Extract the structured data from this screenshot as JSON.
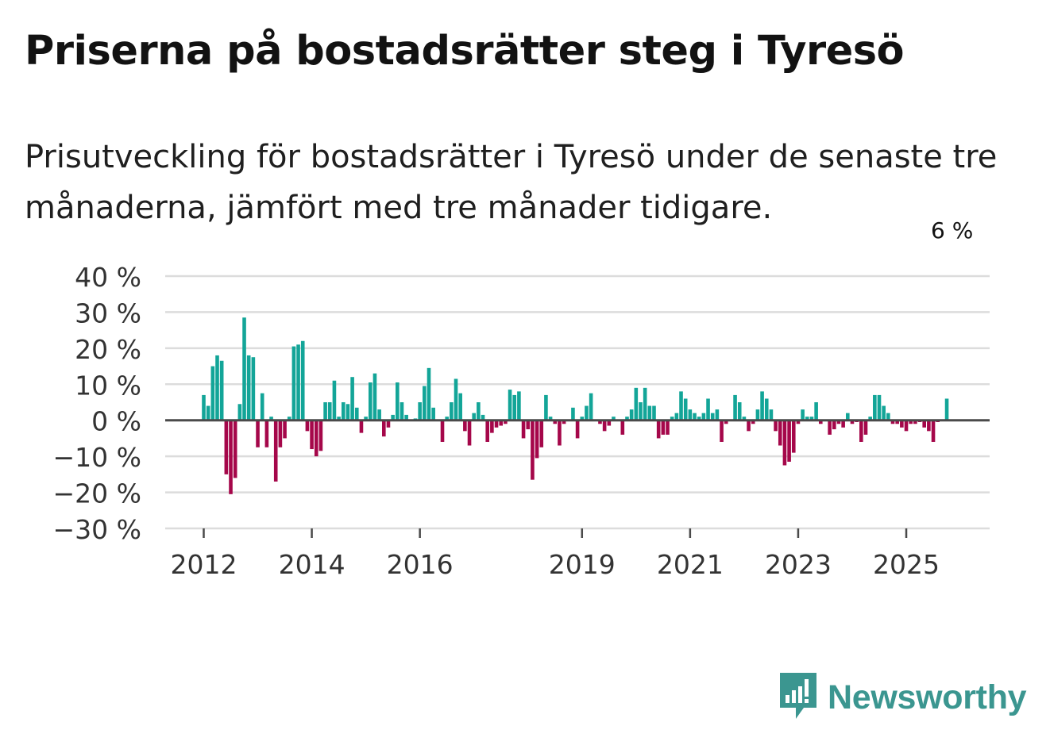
{
  "header": {
    "title": "Priserna på bostadsrätter steg i Tyresö",
    "subtitle": "Prisutveckling för bostadsrätter i Tyresö under de senaste tre månaderna, jämfört med tre månader tidigare."
  },
  "brand": {
    "name": "Newsworthy"
  },
  "colors": {
    "positive": "#13a598",
    "negative": "#a5074a",
    "grid": "#dcdcdc",
    "zero": "#4a4a4a",
    "text": "#333333"
  },
  "chart_data": {
    "type": "bar",
    "title": "Priserna på bostadsrätter steg i Tyresö",
    "ylabel": "",
    "xlabel": "",
    "ylim": [
      -30,
      40
    ],
    "yticks": [
      40,
      30,
      20,
      10,
      0,
      -10,
      -20,
      -30
    ],
    "ytick_labels": [
      "40 %",
      "30 %",
      "20 %",
      "10 %",
      "0 %",
      "−10 %",
      "−20 %",
      "−30 %"
    ],
    "x_start": "2012-01",
    "xticks": [
      {
        "label": "2012",
        "index": 0
      },
      {
        "label": "2014",
        "index": 24
      },
      {
        "label": "2016",
        "index": 48
      },
      {
        "label": "2019",
        "index": 84
      },
      {
        "label": "2021",
        "index": 108
      },
      {
        "label": "2023",
        "index": 132
      },
      {
        "label": "2025",
        "index": 156
      }
    ],
    "annotation": {
      "text": "6 %",
      "index": 166
    },
    "values": [
      7,
      4,
      15,
      18,
      16.5,
      -15,
      -20.5,
      -16,
      4.5,
      28.5,
      18,
      17.5,
      -7.5,
      7.5,
      -7.5,
      1,
      -17,
      -7.5,
      -5,
      1,
      20.5,
      21,
      22,
      -3,
      -8,
      -10,
      -8.5,
      5,
      5,
      11,
      1,
      5,
      4.5,
      12,
      3.5,
      -3.5,
      1,
      10.5,
      13,
      3,
      -4.5,
      -2,
      1.5,
      10.5,
      5,
      1.5,
      0,
      0.5,
      5,
      9.5,
      14.5,
      3.5,
      0,
      -6,
      1,
      5,
      11.5,
      7.5,
      -3,
      -7,
      2,
      5,
      1.5,
      -6,
      -3.5,
      -2,
      -1.5,
      -1,
      8.5,
      7,
      8,
      -5,
      -2.5,
      -16.5,
      -10.5,
      -7.5,
      7,
      1,
      -1,
      -7,
      -1,
      0,
      3.5,
      -5,
      1,
      4,
      7.5,
      0,
      -1,
      -3,
      -1.5,
      1,
      0,
      -4,
      1,
      3,
      9,
      5,
      9,
      4,
      4,
      -5,
      -4,
      -4,
      1,
      2,
      8,
      6,
      3,
      2,
      1,
      2,
      6,
      2,
      3,
      -6,
      -1,
      0,
      7,
      5,
      1,
      -3,
      -1,
      3,
      8,
      6,
      3,
      -3,
      -7,
      -12.5,
      -11.5,
      -9,
      -1,
      3,
      1,
      1,
      5,
      -1,
      0,
      -4,
      -2.5,
      -1,
      -2,
      2,
      -1,
      -0.5,
      -6,
      -4,
      1,
      7,
      7,
      4,
      2,
      -1,
      -1,
      -2,
      -3,
      -1,
      -1,
      -0.5,
      -2,
      -3,
      -6,
      -0.5,
      0,
      6
    ]
  }
}
